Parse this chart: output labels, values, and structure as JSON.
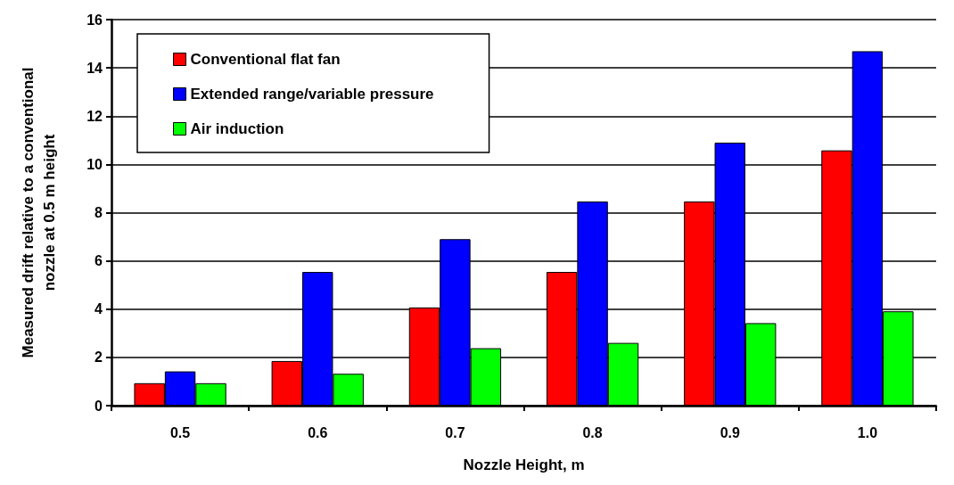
{
  "chart_data": {
    "type": "bar",
    "xlabel": "Nozzle Height, m",
    "ylabel": "Measured drift relative to a conventional\nnozzle at 0.5 m height",
    "categories": [
      "0.5",
      "0.6",
      "0.7",
      "0.8",
      "0.9",
      "1.0"
    ],
    "series": [
      {
        "name": "Conventional flat fan",
        "color": "#ff0000",
        "values": [
          0.93,
          1.85,
          4.07,
          5.54,
          8.46,
          10.58
        ]
      },
      {
        "name": "Extended range/variable pressure",
        "color": "#0000ff",
        "values": [
          1.42,
          5.54,
          6.9,
          8.46,
          10.9,
          14.69
        ]
      },
      {
        "name": "Air induction",
        "color": "#00ff00",
        "values": [
          0.93,
          1.32,
          2.38,
          2.6,
          3.42,
          3.91
        ]
      }
    ],
    "ylim": [
      0,
      16
    ],
    "yticks": [
      0,
      2,
      4,
      6,
      8,
      10,
      12,
      14,
      16
    ],
    "grid": "y",
    "legend": "top left"
  }
}
